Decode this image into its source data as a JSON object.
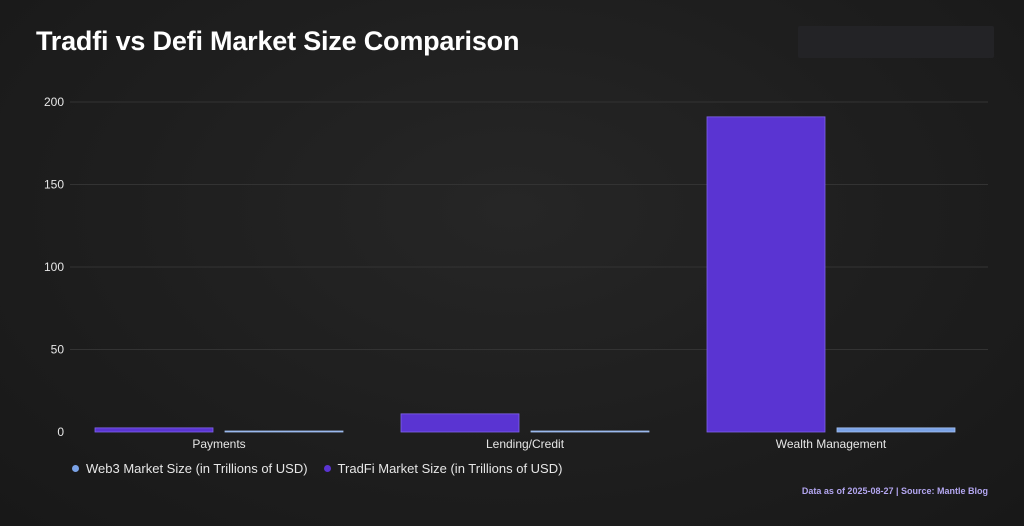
{
  "title": "Tradfi vs Defi Market Size Comparison",
  "source_note": "Data as of 2025-08-27 | Source: Mantle Blog",
  "colors": {
    "web3": "#7aa2e6",
    "tradfi": "#5a34d2",
    "grid": "#333333",
    "text": "#e6e6e6"
  },
  "chart_data": {
    "type": "bar",
    "title": "Tradfi vs Defi Market Size Comparison",
    "categories": [
      "Payments",
      "Lending/Credit",
      "Wealth Management"
    ],
    "series": [
      {
        "name": "TradFi Market Size (in Trillions of USD)",
        "values": [
          2.5,
          11,
          191
        ]
      },
      {
        "name": "Web3 Market Size (in Trillions of USD)",
        "values": [
          0.3,
          0.1,
          2.5
        ]
      }
    ],
    "ylim": [
      0,
      200
    ],
    "yticks": [
      0,
      50,
      100,
      150,
      200
    ],
    "grid": true,
    "legend_position": "bottom-left",
    "legend_order": [
      "Web3 Market Size (in Trillions of USD)",
      "TradFi Market Size (in Trillions of USD)"
    ]
  }
}
